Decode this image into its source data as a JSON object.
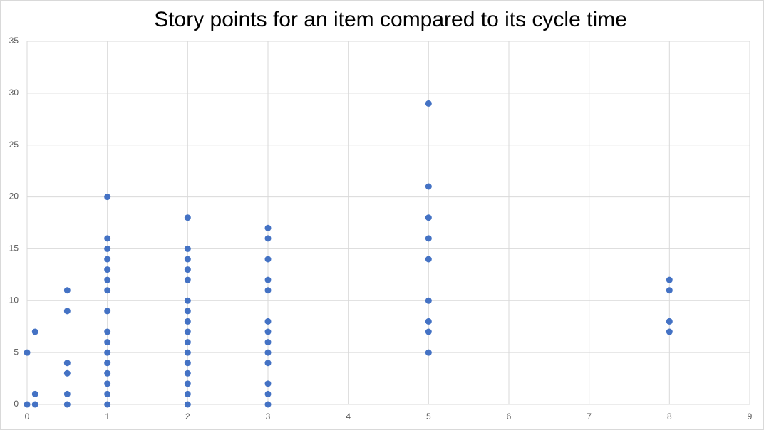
{
  "chart_data": {
    "type": "scatter",
    "title": "Story points for an item compared to its cycle time",
    "x": [
      0,
      0,
      0.1,
      0.1,
      0.1,
      0.5,
      0.5,
      0.5,
      0.5,
      0.5,
      0.5,
      1,
      1,
      1,
      1,
      1,
      1,
      1,
      1,
      1,
      1,
      1,
      1,
      1,
      1,
      1,
      1,
      2,
      2,
      2,
      2,
      2,
      2,
      2,
      2,
      2,
      2,
      2,
      2,
      2,
      2,
      2,
      2,
      3,
      3,
      3,
      3,
      3,
      3,
      3,
      3,
      3,
      3,
      3,
      3,
      3,
      5,
      5,
      5,
      5,
      5,
      5,
      5,
      5,
      5,
      8,
      8,
      8,
      8
    ],
    "values": [
      5,
      0,
      7,
      1,
      0,
      11,
      9,
      4,
      3,
      1,
      0,
      20,
      16,
      15,
      14,
      13,
      12,
      11,
      9,
      7,
      6,
      5,
      4,
      3,
      2,
      1,
      0,
      18,
      15,
      14,
      13,
      12,
      10,
      9,
      8,
      7,
      6,
      5,
      4,
      3,
      2,
      1,
      0,
      17,
      16,
      14,
      12,
      11,
      8,
      7,
      6,
      5,
      4,
      2,
      1,
      0,
      29,
      21,
      18,
      16,
      14,
      10,
      8,
      7,
      5,
      12,
      11,
      8,
      7
    ],
    "color": "#4472c4",
    "xlim": [
      0,
      9
    ],
    "xticks": [
      0,
      1,
      2,
      3,
      4,
      5,
      6,
      7,
      8,
      9
    ],
    "ylim": [
      0,
      35
    ],
    "yticks": [
      0,
      5,
      10,
      15,
      20,
      25,
      30,
      35
    ],
    "grid": true
  }
}
